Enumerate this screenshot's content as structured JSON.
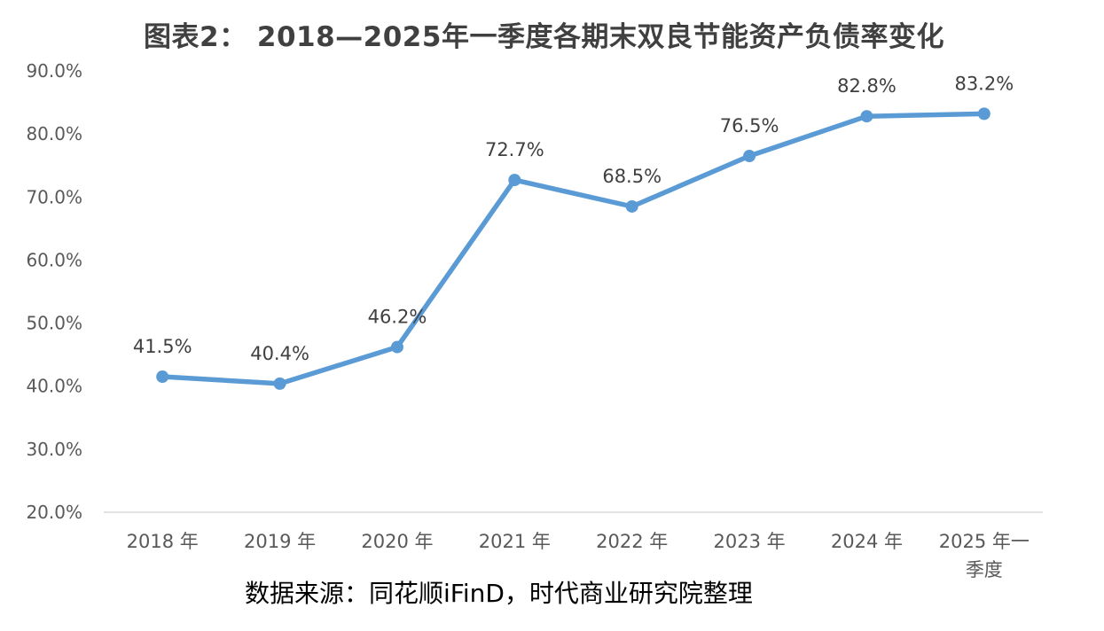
{
  "chart_data": {
    "type": "line",
    "title": "图表2： 2018—2025年一季度各期末双良节能资产负债率变化",
    "categories": [
      [
        "2018 年"
      ],
      [
        "2019 年"
      ],
      [
        "2020 年"
      ],
      [
        "2021 年"
      ],
      [
        "2022 年"
      ],
      [
        "2023 年"
      ],
      [
        "2024 年"
      ],
      [
        "2025 年一",
        "季度"
      ]
    ],
    "series": [
      {
        "values": [
          41.5,
          40.4,
          46.2,
          72.7,
          68.5,
          76.5,
          82.8,
          83.2
        ],
        "labels": [
          "41.5%",
          "40.4%",
          "46.2%",
          "72.7%",
          "68.5%",
          "76.5%",
          "82.8%",
          "83.2%"
        ],
        "color": "#5B9BD5"
      }
    ],
    "ylim": [
      20,
      90
    ],
    "yticks": [
      "20.0%",
      "30.0%",
      "40.0%",
      "50.0%",
      "60.0%",
      "70.0%",
      "80.0%",
      "90.0%"
    ],
    "grid": false,
    "axis_color": "#D9D9D9"
  },
  "source_note": "数据来源：同花顺iFinD，时代商业研究院整理"
}
